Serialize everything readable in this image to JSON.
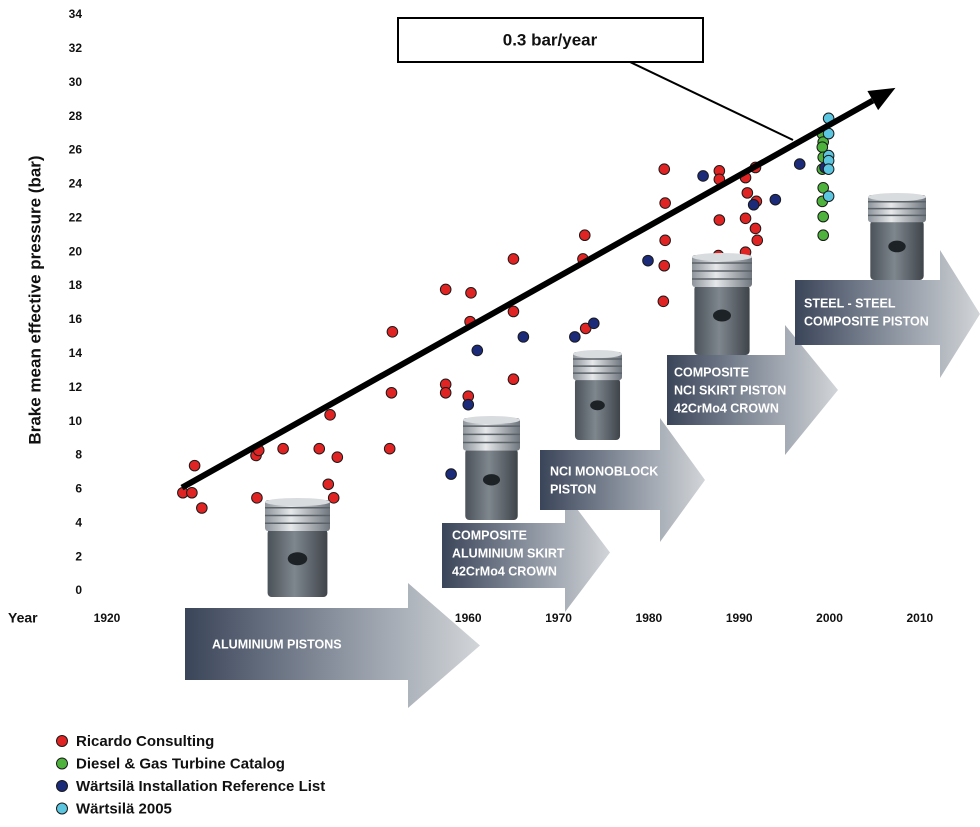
{
  "chart_data": {
    "type": "scatter",
    "ylabel": "Brake mean effective pressure (bar)",
    "xlabel": "Year",
    "xlim": [
      1920,
      2015
    ],
    "xticks": [
      1920,
      1960,
      1970,
      1980,
      1990,
      2000,
      2010
    ],
    "ylim": [
      0,
      34
    ],
    "yticks": [
      0,
      2,
      4,
      6,
      8,
      10,
      12,
      14,
      16,
      18,
      20,
      22,
      24,
      26,
      28,
      30,
      32,
      34
    ],
    "grid": false,
    "series": [
      {
        "name": "Ricardo Consulting",
        "color": "#e02424",
        "x": [
          1928.4,
          1929.4,
          1929.7,
          1930.5,
          1936.5,
          1936.8,
          1936.6,
          1939.5,
          1943.5,
          1944.7,
          1944.5,
          1945.5,
          1945.1,
          1951.6,
          1951.5,
          1951.3,
          1957.5,
          1957.5,
          1957.5,
          1960.0,
          1960.3,
          1960.2,
          1965.0,
          1965.0,
          1965.0,
          1972.9,
          1972.7,
          1973.0,
          1981.7,
          1981.8,
          1981.8,
          1981.7,
          1981.6,
          1987.8,
          1987.8,
          1987.8,
          1987.7,
          1990.7,
          1990.9,
          1990.7,
          1990.7,
          1991.8,
          1991.9,
          1991.8,
          1992.0
        ],
        "values": [
          5.8,
          5.8,
          7.4,
          4.9,
          8.0,
          8.3,
          5.5,
          8.4,
          8.4,
          10.4,
          6.3,
          7.9,
          5.5,
          15.3,
          11.7,
          8.4,
          17.8,
          12.2,
          11.7,
          11.5,
          17.6,
          15.9,
          19.6,
          16.5,
          12.5,
          21.0,
          19.6,
          15.5,
          24.9,
          22.9,
          20.7,
          19.2,
          17.1,
          24.8,
          24.3,
          21.9,
          19.8,
          24.4,
          23.5,
          22.0,
          20.0,
          25.0,
          23.0,
          21.4,
          20.7
        ]
      },
      {
        "name": "Diesel & Gas Turbine Catalog",
        "color": "#4db33d",
        "x": [
          1999.2,
          1999.3,
          1999.2,
          1999.3,
          1999.2,
          1999.3,
          1999.2,
          1999.3,
          1999.3
        ],
        "values": [
          27.0,
          26.5,
          26.2,
          25.6,
          24.9,
          23.8,
          23.0,
          22.1,
          21.0
        ]
      },
      {
        "name": "Wärtsilä Installation Reference List",
        "color": "#1c2a7a",
        "x": [
          1958.1,
          1960.0,
          1961.0,
          1966.1,
          1971.8,
          1973.9,
          1979.9,
          1986.0,
          1991.6,
          1994.0,
          1996.7,
          1999.5
        ],
        "values": [
          6.9,
          11.0,
          14.2,
          15.0,
          15.0,
          15.8,
          19.5,
          24.5,
          22.8,
          23.1,
          25.2,
          25.0
        ]
      },
      {
        "name": "Wärtsilä 2005",
        "color": "#5cc6e0",
        "x": [
          1999.9,
          1999.9,
          1999.9,
          1999.9,
          1999.9,
          1999.9
        ],
        "values": [
          27.9,
          27.0,
          25.7,
          25.4,
          24.9,
          23.3
        ]
      }
    ],
    "trend": {
      "label": "0.3 bar/year",
      "x": [
        1928.3,
        2007.3
      ],
      "values": [
        6.1,
        29.7
      ]
    },
    "stages": [
      [
        "ALUMINIUM PISTONS"
      ],
      [
        "COMPOSITE",
        "ALUMINIUM SKIRT",
        "42CrMo4 CROWN"
      ],
      [
        "NCI MONOBLOCK",
        "PISTON"
      ],
      [
        "COMPOSITE",
        "NCI SKIRT PISTON",
        "42CrMo4 CROWN"
      ],
      [
        "STEEL - STEEL",
        "COMPOSITE PISTON"
      ]
    ]
  }
}
